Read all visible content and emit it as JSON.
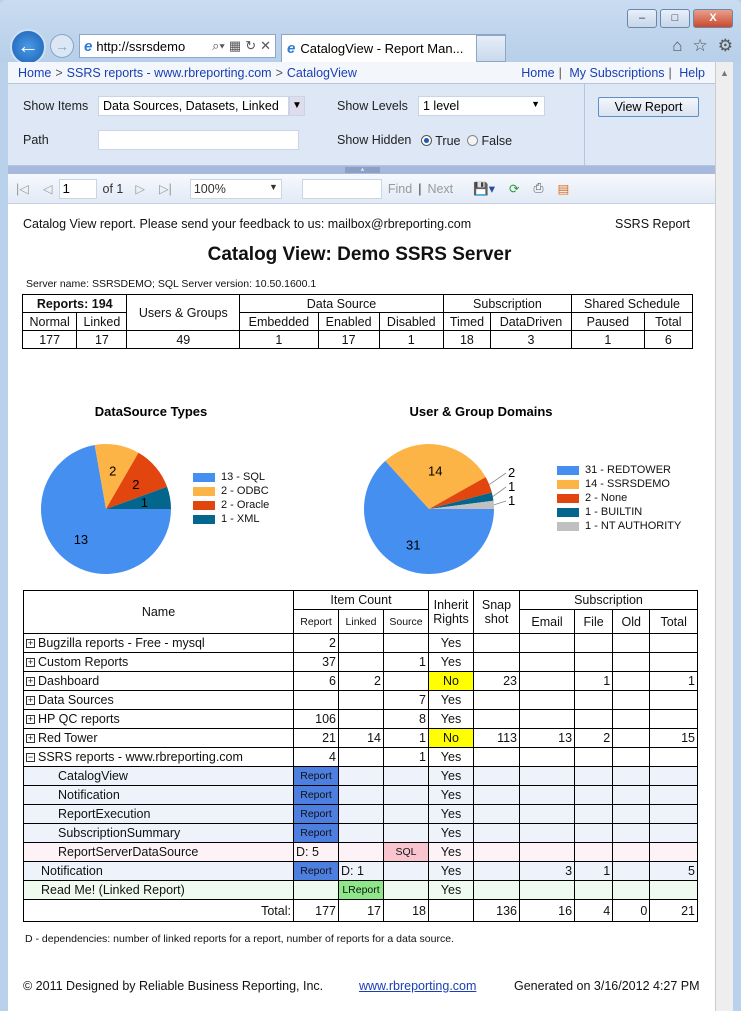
{
  "browser": {
    "address": "http://ssrsdemo",
    "tab_title": "CatalogView - Report Man...",
    "buttons": {
      "minimize": "–",
      "maximize": "□",
      "close": "X"
    }
  },
  "breadcrumb": {
    "items": [
      "Home",
      "SSRS reports - www.rbreporting.com",
      "CatalogView"
    ],
    "links": [
      "Home",
      "My Subscriptions",
      "Help"
    ]
  },
  "params": {
    "show_items_label": "Show Items",
    "show_items_value": "Data Sources, Datasets, Linked",
    "show_levels_label": "Show Levels",
    "show_levels_value": "1 level",
    "path_label": "Path",
    "path_value": "",
    "show_hidden_label": "Show Hidden",
    "true_label": "True",
    "false_label": "False",
    "show_hidden_selected": "True",
    "view_report": "View Report"
  },
  "toolbar": {
    "page": "1",
    "of": "of 1",
    "zoom": "100%",
    "find": "Find",
    "next": "Next",
    "find_value": ""
  },
  "report": {
    "feedback": "Catalog View report. Please send your feedback to us: mailbox@rbreporting.com",
    "tag": "SSRS Report",
    "title": "Catalog View: Demo SSRS Server",
    "server": "Server name: SSRSDEMO; SQL Server version: 10.50.1600.1",
    "summary": {
      "reports": "Reports: 194",
      "users_groups": "Users & Groups",
      "data_source": "Data Source",
      "subscription": "Subscription",
      "shared_schedule": "Shared Schedule",
      "subheaders": [
        "Normal",
        "Linked",
        "Embedded",
        "Enabled",
        "Disabled",
        "Timed",
        "DataDriven",
        "Paused",
        "Total"
      ],
      "values": [
        "177",
        "17",
        "49",
        "1",
        "17",
        "1",
        "18",
        "3",
        "1",
        "6"
      ]
    },
    "note": "D - dependencies: number of linked reports for a report, number of reports for a data source.",
    "footer": {
      "copyright": "© 2011 Designed by Reliable Business Reporting, Inc.",
      "link": "www.rbreporting.com",
      "generated": "Generated on 3/16/2012 4:27 PM"
    }
  },
  "catalog": {
    "headers": {
      "name": "Name",
      "item_count": "Item Count",
      "report": "Report",
      "linked": "Linked",
      "source": "Source",
      "inherit": "Inherit Rights",
      "snapshot": "Snap shot",
      "subscription": "Subscription",
      "email": "Email",
      "file": "File",
      "old": "Old",
      "total": "Total"
    },
    "rows": [
      {
        "name": "Bugzilla reports - Free - mysql",
        "toggle": "+",
        "report": "2",
        "linked": "",
        "source": "",
        "inherit": "Yes",
        "snap": "",
        "email": "",
        "file": "",
        "old": "",
        "total": ""
      },
      {
        "name": "Custom Reports",
        "toggle": "+",
        "report": "37",
        "linked": "",
        "source": "1",
        "inherit": "Yes",
        "snap": "",
        "email": "",
        "file": "",
        "old": "",
        "total": ""
      },
      {
        "name": "Dashboard",
        "toggle": "+",
        "report": "6",
        "linked": "2",
        "source": "",
        "inherit": "No",
        "snap": "23",
        "email": "",
        "file": "1",
        "old": "",
        "total": "1"
      },
      {
        "name": "Data Sources",
        "toggle": "+",
        "report": "",
        "linked": "",
        "source": "7",
        "inherit": "Yes",
        "snap": "",
        "email": "",
        "file": "",
        "old": "",
        "total": ""
      },
      {
        "name": "HP QC reports",
        "toggle": "+",
        "report": "106",
        "linked": "",
        "source": "8",
        "inherit": "Yes",
        "snap": "",
        "email": "",
        "file": "",
        "old": "",
        "total": ""
      },
      {
        "name": "Red Tower",
        "toggle": "+",
        "report": "21",
        "linked": "14",
        "source": "1",
        "inherit": "No",
        "snap": "113",
        "email": "13",
        "file": "2",
        "old": "",
        "total": "15"
      },
      {
        "name": "SSRS reports - www.rbreporting.com",
        "toggle": "−",
        "report": "4",
        "linked": "",
        "source": "1",
        "inherit": "Yes",
        "snap": "",
        "email": "",
        "file": "",
        "old": "",
        "total": ""
      },
      {
        "name": "CatalogView",
        "indent": 2,
        "kind": "sub",
        "report": "Report",
        "linked": "",
        "source": "",
        "inherit": "Yes",
        "snap": "",
        "email": "",
        "file": "",
        "old": "",
        "total": ""
      },
      {
        "name": "Notification",
        "indent": 2,
        "kind": "sub",
        "report": "Report",
        "linked": "",
        "source": "",
        "inherit": "Yes",
        "snap": "",
        "email": "",
        "file": "",
        "old": "",
        "total": ""
      },
      {
        "name": "ReportExecution",
        "indent": 2,
        "kind": "sub",
        "report": "Report",
        "linked": "",
        "source": "",
        "inherit": "Yes",
        "snap": "",
        "email": "",
        "file": "",
        "old": "",
        "total": ""
      },
      {
        "name": "SubscriptionSummary",
        "indent": 2,
        "kind": "sub",
        "report": "Report",
        "linked": "",
        "source": "",
        "inherit": "Yes",
        "snap": "",
        "email": "",
        "file": "",
        "old": "",
        "total": ""
      },
      {
        "name": "ReportServerDataSource",
        "indent": 2,
        "kind": "pink",
        "report": "D: 5",
        "linked": "",
        "source": "SQL",
        "inherit": "Yes",
        "snap": "",
        "email": "",
        "file": "",
        "old": "",
        "total": ""
      },
      {
        "name": "Notification",
        "indent": 1,
        "kind": "sub",
        "report": "Report",
        "linked": "D: 1",
        "source": "",
        "inherit": "Yes",
        "snap": "",
        "email": "3",
        "file": "1",
        "old": "",
        "total": "5"
      },
      {
        "name": "Read Me! (Linked Report)",
        "indent": 1,
        "kind": "green",
        "report": "",
        "linked": "LReport",
        "source": "",
        "inherit": "Yes",
        "snap": "",
        "email": "",
        "file": "",
        "old": "",
        "total": ""
      }
    ],
    "totals": {
      "label": "Total:",
      "report": "177",
      "linked": "17",
      "source": "18",
      "inherit": "",
      "snap": "136",
      "email": "16",
      "file": "4",
      "old": "0",
      "total": "21"
    }
  },
  "chart_data": [
    {
      "type": "pie",
      "title": "DataSource Types",
      "categories": [
        "SQL",
        "ODBC",
        "Oracle",
        "XML"
      ],
      "values": [
        13,
        2,
        2,
        1
      ],
      "legend": [
        "13 - SQL",
        "2 - ODBC",
        "2 - Oracle",
        "1 - XML"
      ],
      "colors": [
        "#448ff0",
        "#fdb446",
        "#e2450d",
        "#05668d"
      ],
      "legend_position": "right"
    },
    {
      "type": "pie",
      "title": "User & Group Domains",
      "categories": [
        "REDTOWER",
        "SSRSDEMO",
        "None",
        "BUILTIN",
        "NT AUTHORITY"
      ],
      "values": [
        31,
        14,
        2,
        1,
        1
      ],
      "legend": [
        "31 - REDTOWER",
        "14 - SSRSDEMO",
        "2 - None",
        "1 - BUILTIN",
        "1 - NT AUTHORITY"
      ],
      "colors": [
        "#448ff0",
        "#fdb446",
        "#e2450d",
        "#05668d",
        "#c0c0c0"
      ],
      "legend_position": "right"
    }
  ]
}
